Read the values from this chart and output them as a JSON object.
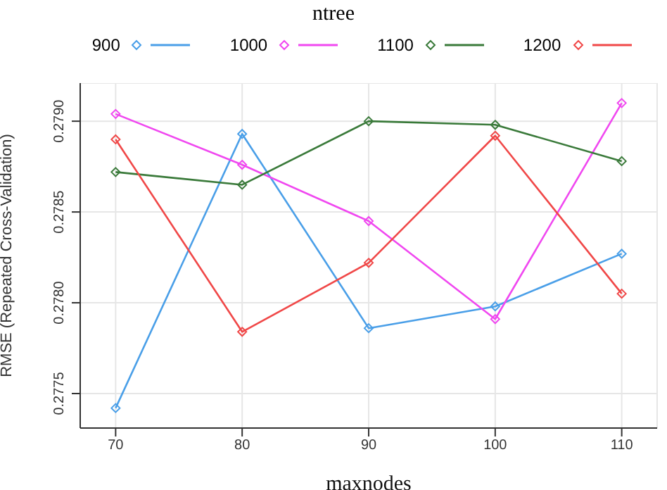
{
  "chart_data": {
    "type": "line",
    "legend_title": "ntree",
    "xlabel": "maxnodes",
    "ylabel": "RMSE (Repeated Cross-Validation)",
    "x": [
      70,
      80,
      90,
      100,
      110
    ],
    "series": [
      {
        "name": "900",
        "color": "#4a9fe8",
        "values": [
          0.27742,
          0.27893,
          0.27786,
          0.27798,
          0.27827
        ]
      },
      {
        "name": "1000",
        "color": "#f048f0",
        "values": [
          0.27904,
          0.27876,
          0.27845,
          0.27791,
          0.2791
        ]
      },
      {
        "name": "1100",
        "color": "#3a7a3a",
        "values": [
          0.27872,
          0.27865,
          0.279,
          0.27898,
          0.27878
        ]
      },
      {
        "name": "1200",
        "color": "#f04848",
        "values": [
          0.2789,
          0.27784,
          0.27822,
          0.27892,
          0.27805
        ]
      }
    ],
    "xlim": [
      67.2,
      112.8
    ],
    "xticks": [
      70,
      80,
      90,
      100,
      110
    ],
    "ylim": [
      0.27731,
      0.27921
    ],
    "yticks": [
      0.2775,
      {
        "value": 0.278,
        "label": "0.2780"
      },
      0.2785,
      {
        "value": 0.279,
        "label": "0.2790"
      }
    ],
    "grid": true,
    "legend": "top",
    "marker": "diamond",
    "line_style": "solid"
  }
}
